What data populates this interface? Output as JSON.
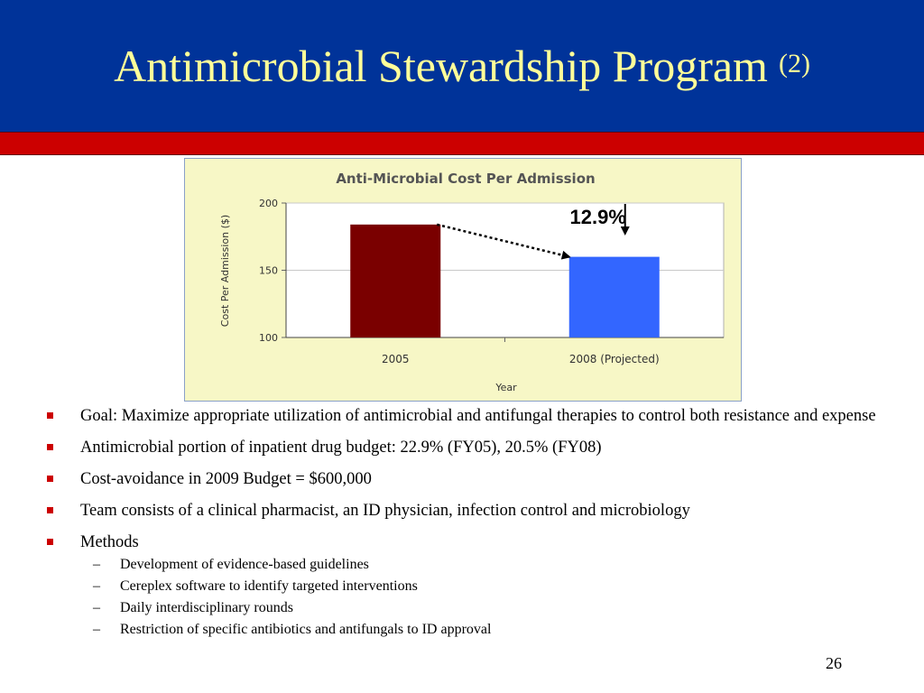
{
  "slide": {
    "title_main": "Antimicrobial Stewardship Program",
    "title_suffix": "(2)",
    "page_number": "26",
    "colors": {
      "header": "#003399",
      "title_text": "#ffff99",
      "accent_bar": "#cc0000",
      "bullet": "#cc0000"
    }
  },
  "chart_data": {
    "type": "bar",
    "title": "Anti-Microbial Cost Per Admission",
    "xlabel": "Year",
    "ylabel": "Cost Per Admission ($)",
    "ylim": [
      100,
      200
    ],
    "yticks": [
      "100",
      "150",
      "200"
    ],
    "categories": [
      "2005",
      "2008 (Projected)"
    ],
    "values": [
      184,
      160
    ],
    "colors": [
      "#7a0000",
      "#3366ff"
    ],
    "grid": true,
    "annotation": "12.9%",
    "background": "#f7f7c6"
  },
  "bullets": [
    {
      "text": "Goal:  Maximize appropriate utilization of antimicrobial and antifungal therapies to control both resistance and expense"
    },
    {
      "text": "Antimicrobial portion of inpatient drug budget:  22.9% (FY05), 20.5% (FY08)"
    },
    {
      "text": "Cost-avoidance in 2009 Budget = $600,000"
    },
    {
      "text": "Team consists of a clinical pharmacist, an ID physician, infection control and microbiology"
    },
    {
      "text": "Methods"
    }
  ],
  "methods": [
    "Development of evidence-based guidelines",
    "Cereplex software to identify targeted interventions",
    "Daily interdisciplinary rounds",
    "Restriction of specific antibiotics and antifungals to ID approval"
  ]
}
